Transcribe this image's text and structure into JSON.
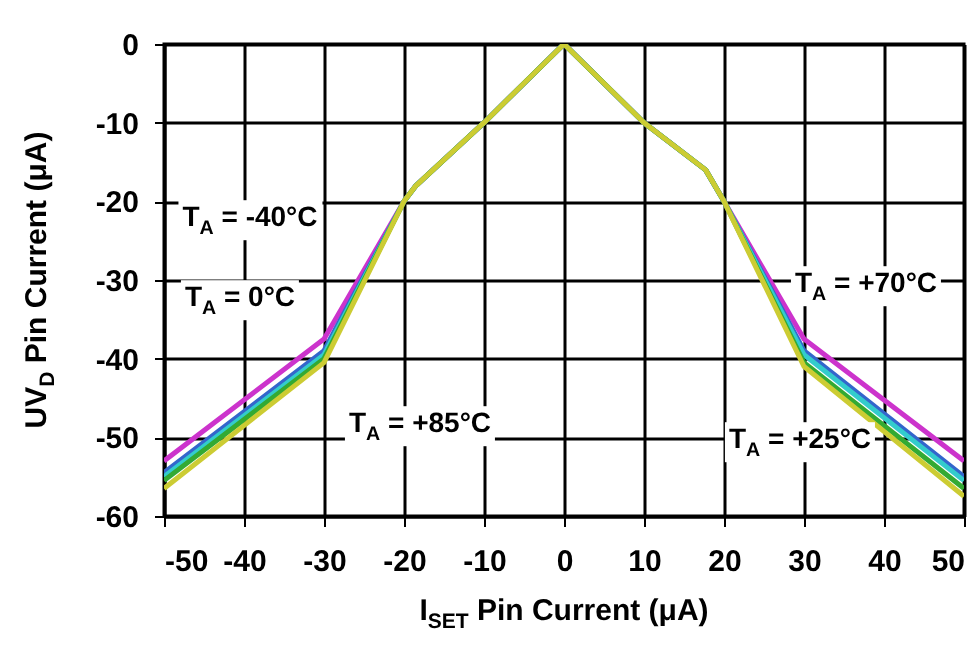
{
  "chart_data": {
    "type": "line",
    "xlabel": "I$_{SET}$ Pin Current (μA)",
    "ylabel": "UV$_{D}$ Pin Current (μA)",
    "x": [
      -50,
      -30,
      -20,
      -18.5,
      -10,
      0,
      10,
      17.7,
      20,
      30,
      50
    ],
    "series": [
      {
        "color": "#cc33cc",
        "values": [
          -53,
          -37.5,
          -20,
          -18,
          -10,
          0,
          -10,
          -16,
          -20,
          -37.5,
          -53
        ]
      },
      {
        "color": "#3366cc",
        "values": [
          -54.5,
          -39,
          -20,
          -18,
          -10,
          0,
          -10,
          -16,
          -20,
          -39,
          -55
        ]
      },
      {
        "color": "#33cccc",
        "values": [
          -55,
          -39.5,
          -20,
          -18,
          -10,
          0,
          -10,
          -16,
          -20,
          -39.5,
          -55.5
        ]
      },
      {
        "color": "#33aa33",
        "values": [
          -55.5,
          -40,
          -20,
          -18,
          -10,
          0,
          -10,
          -16,
          -20,
          -40.5,
          -56.5
        ]
      },
      {
        "color": "#cccc33",
        "values": [
          -56.5,
          -40.5,
          -20,
          -18,
          -10,
          0,
          -10,
          -16,
          -20,
          -41,
          -57.5
        ]
      }
    ],
    "xlim": [
      -50,
      50
    ],
    "xticks": [
      -50,
      -40,
      -30,
      -20,
      -10,
      0,
      10,
      20,
      30,
      40,
      50
    ],
    "ylim": [
      -60,
      0
    ],
    "yticks": [
      -60,
      -50,
      -40,
      -30,
      -20,
      -10,
      0
    ],
    "grid": true,
    "line_style": "solid",
    "marker": "none",
    "annotations": [
      "T$_{A}$ = -40°C",
      "T$_{A}$ = 0°C",
      "T$_{A}$ = +85°C",
      "T$_{A}$ = +70°C",
      "T$_{A}$ = +25°C"
    ]
  }
}
